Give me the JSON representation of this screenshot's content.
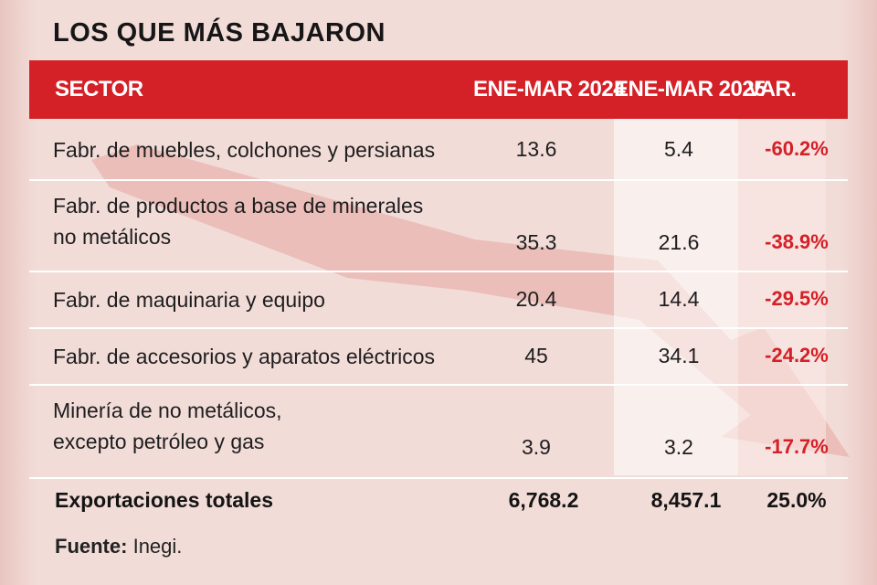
{
  "title": "LOS QUE MÁS BAJARON",
  "header": {
    "sector": "SECTOR",
    "col_2024": "ENE-MAR 2024",
    "col_2025": "ENE-MAR 2025",
    "col_var": "VAR."
  },
  "chart_data": {
    "type": "table",
    "title": "LOS QUE MÁS BAJARON",
    "columns": [
      "SECTOR",
      "ENE-MAR 2024",
      "ENE-MAR 2025",
      "VAR."
    ],
    "rows": [
      {
        "sector_lines": [
          "Fabr. de muebles, colchones y persianas"
        ],
        "v2024": "13.6",
        "v2025": "5.4",
        "var": "-60.2%"
      },
      {
        "sector_lines": [
          "Fabr. de productos a base de minerales",
          "no metálicos"
        ],
        "v2024": "35.3",
        "v2025": "21.6",
        "var": "-38.9%"
      },
      {
        "sector_lines": [
          "Fabr. de maquinaria y equipo"
        ],
        "v2024": "20.4",
        "v2025": "14.4",
        "var": "-29.5%"
      },
      {
        "sector_lines": [
          "Fabr. de accesorios y aparatos eléctricos"
        ],
        "v2024": "45",
        "v2025": "34.1",
        "var": "-24.2%"
      },
      {
        "sector_lines": [
          "Minería de no metálicos,",
          "excepto petróleo y gas"
        ],
        "v2024": "3.9",
        "v2025": "3.2",
        "var": "-17.7%"
      }
    ],
    "total": {
      "label": "Exportaciones totales",
      "v2024": "6,768.2",
      "v2025": "8,457.1",
      "var": "25.0%"
    }
  },
  "source": {
    "label": "Fuente:",
    "value": "Inegi."
  },
  "colors": {
    "accent": "#d42027",
    "background": "#f2dcd8",
    "text": "#1e1e1e"
  }
}
